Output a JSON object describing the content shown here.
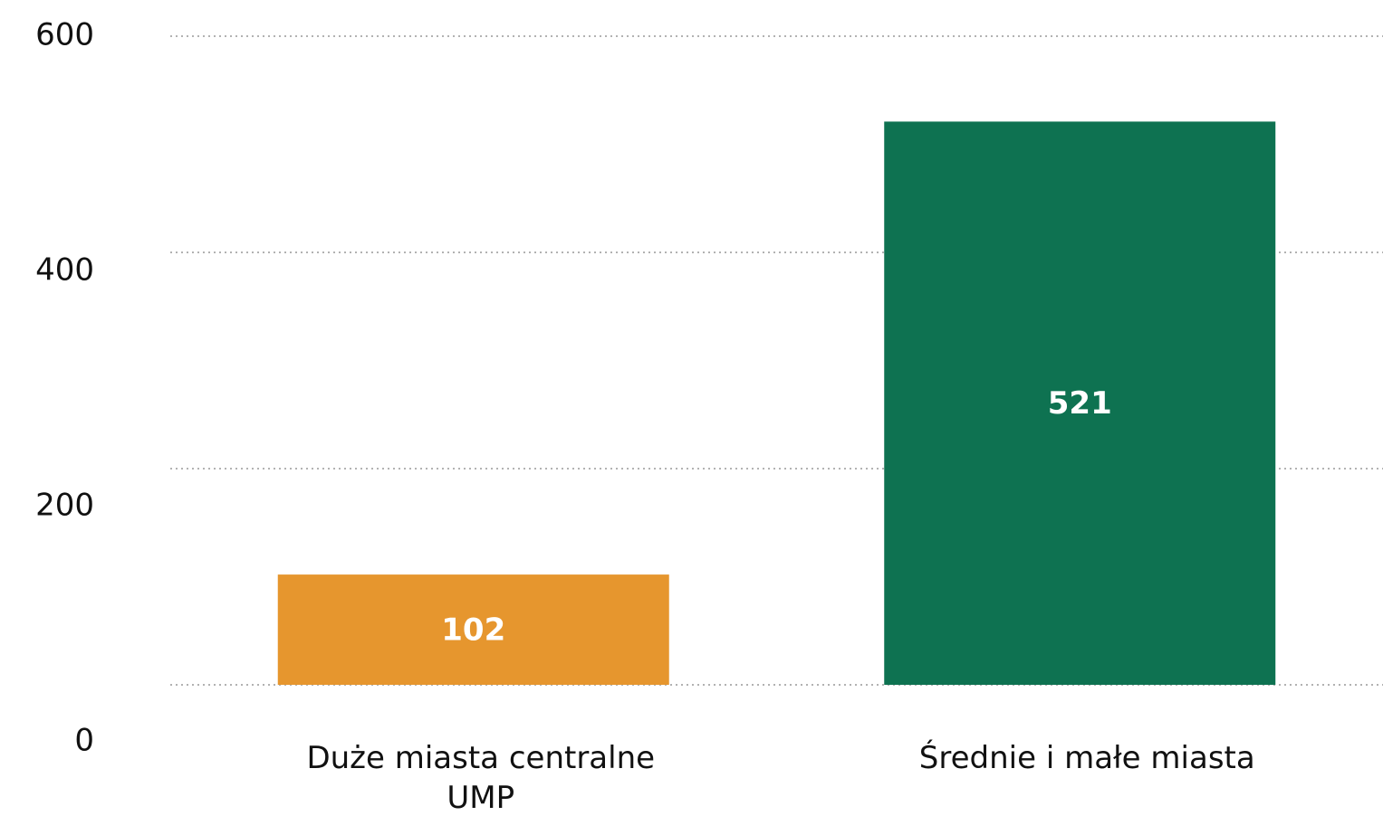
{
  "chart_data": {
    "type": "bar",
    "categories": [
      "Duże miasta centralne UMP",
      "Średnie i małe miasta"
    ],
    "values": [
      102,
      521
    ],
    "colors": [
      "#e6962e",
      "#0e7251"
    ],
    "ylim": [
      0,
      600
    ],
    "yticks": [
      0,
      200,
      400,
      600
    ],
    "grid": true
  }
}
